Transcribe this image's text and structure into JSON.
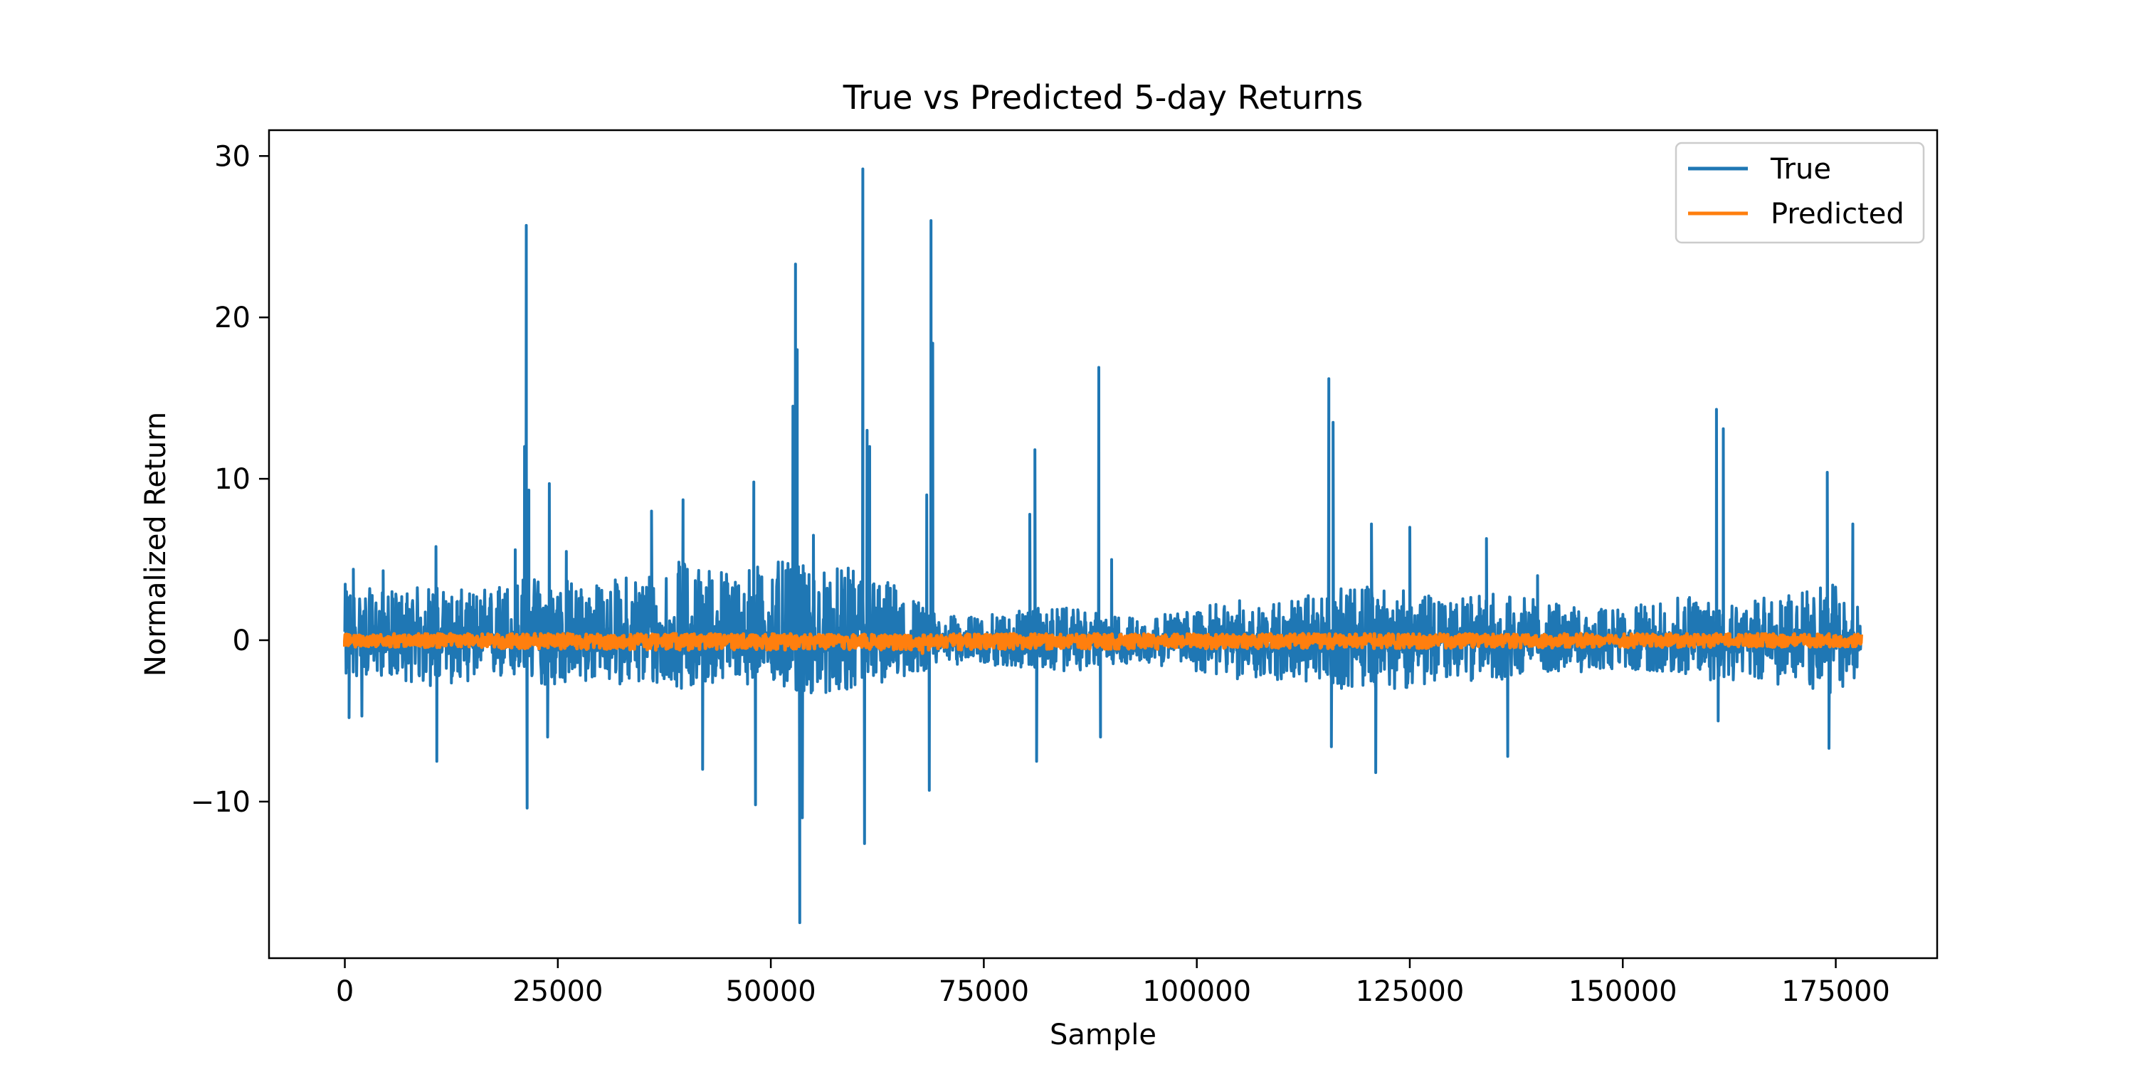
{
  "chart_data": {
    "type": "line",
    "title": "True vs Predicted 5-day Returns",
    "xlabel": "Sample",
    "ylabel": "Normalized Return",
    "xlim": [
      -8900,
      186900
    ],
    "ylim": [
      -19.7,
      31.6
    ],
    "x_ticks": [
      0,
      25000,
      50000,
      75000,
      100000,
      125000,
      150000,
      175000
    ],
    "x_tick_labels": [
      "0",
      "25000",
      "50000",
      "75000",
      "100000",
      "125000",
      "150000",
      "175000"
    ],
    "y_ticks": [
      -10,
      0,
      10,
      20,
      30
    ],
    "y_tick_labels": [
      "−10",
      "0",
      "10",
      "20",
      "30"
    ],
    "grid": false,
    "legend_position": "top-right",
    "n_samples": 178000,
    "series": [
      {
        "name": "True",
        "color": "#1f77b4",
        "baseline_envelope": [
          [
            0,
            -2.5,
            3.5
          ],
          [
            5000,
            -2.2,
            3.0
          ],
          [
            10000,
            -3.0,
            3.5
          ],
          [
            15000,
            -2.5,
            3.0
          ],
          [
            20000,
            -2.5,
            4.0
          ],
          [
            25000,
            -3.0,
            4.0
          ],
          [
            30000,
            -2.5,
            3.5
          ],
          [
            35000,
            -3.0,
            4.5
          ],
          [
            40000,
            -3.0,
            5.0
          ],
          [
            45000,
            -2.5,
            4.5
          ],
          [
            50000,
            -3.0,
            5.0
          ],
          [
            55000,
            -3.5,
            4.5
          ],
          [
            60000,
            -3.0,
            4.5
          ],
          [
            65000,
            -2.5,
            3.5
          ],
          [
            70000,
            -1.5,
            1.5
          ],
          [
            75000,
            -1.5,
            1.5
          ],
          [
            80000,
            -1.8,
            2.0
          ],
          [
            85000,
            -2.0,
            2.0
          ],
          [
            90000,
            -1.5,
            1.5
          ],
          [
            95000,
            -1.5,
            1.5
          ],
          [
            100000,
            -2.0,
            2.0
          ],
          [
            105000,
            -2.5,
            2.5
          ],
          [
            110000,
            -2.5,
            2.5
          ],
          [
            115000,
            -3.0,
            3.0
          ],
          [
            120000,
            -3.0,
            3.5
          ],
          [
            125000,
            -3.0,
            3.0
          ],
          [
            130000,
            -2.5,
            2.5
          ],
          [
            135000,
            -2.5,
            3.0
          ],
          [
            140000,
            -2.0,
            2.5
          ],
          [
            145000,
            -2.0,
            2.0
          ],
          [
            150000,
            -1.8,
            2.0
          ],
          [
            155000,
            -2.0,
            2.5
          ],
          [
            160000,
            -2.5,
            3.0
          ],
          [
            165000,
            -2.5,
            2.5
          ],
          [
            170000,
            -3.0,
            3.0
          ],
          [
            175000,
            -3.5,
            3.5
          ],
          [
            178000,
            -2.0,
            2.0
          ]
        ],
        "spikes": [
          [
            200,
            3.0
          ],
          [
            500,
            -4.8
          ],
          [
            1000,
            4.4
          ],
          [
            2000,
            -4.7
          ],
          [
            4500,
            4.3
          ],
          [
            10700,
            5.8
          ],
          [
            10800,
            -7.5
          ],
          [
            18000,
            3.0
          ],
          [
            20000,
            5.6
          ],
          [
            21100,
            12.0
          ],
          [
            21300,
            25.7
          ],
          [
            21400,
            -10.4
          ],
          [
            21600,
            9.3
          ],
          [
            23800,
            -6.0
          ],
          [
            24000,
            9.7
          ],
          [
            26000,
            5.5
          ],
          [
            36000,
            8.0
          ],
          [
            39700,
            8.7
          ],
          [
            42000,
            -8.0
          ],
          [
            48000,
            9.8
          ],
          [
            48200,
            -10.2
          ],
          [
            52600,
            14.5
          ],
          [
            52900,
            23.3
          ],
          [
            53100,
            18.0
          ],
          [
            53400,
            -17.5
          ],
          [
            53700,
            -11.0
          ],
          [
            55000,
            6.5
          ],
          [
            60800,
            29.2
          ],
          [
            61000,
            -12.6
          ],
          [
            61300,
            13.0
          ],
          [
            61600,
            12.0
          ],
          [
            68300,
            9.0
          ],
          [
            68600,
            -9.3
          ],
          [
            68800,
            26.0
          ],
          [
            69000,
            18.4
          ],
          [
            80400,
            7.8
          ],
          [
            81000,
            11.8
          ],
          [
            81200,
            -7.5
          ],
          [
            88500,
            16.9
          ],
          [
            88700,
            -6.0
          ],
          [
            90000,
            5.0
          ],
          [
            115500,
            16.2
          ],
          [
            115800,
            -6.6
          ],
          [
            116000,
            13.5
          ],
          [
            120500,
            7.2
          ],
          [
            121000,
            -8.2
          ],
          [
            125000,
            7.0
          ],
          [
            134000,
            6.3
          ],
          [
            136500,
            -7.2
          ],
          [
            140000,
            4.0
          ],
          [
            161000,
            14.3
          ],
          [
            161200,
            -5.0
          ],
          [
            161800,
            13.1
          ],
          [
            174000,
            10.4
          ],
          [
            174200,
            -6.7
          ],
          [
            177000,
            7.2
          ]
        ]
      },
      {
        "name": "Predicted",
        "color": "#ff7f0e",
        "baseline_envelope": [
          [
            0,
            -0.4,
            0.4
          ],
          [
            36000,
            -0.6,
            0.4
          ],
          [
            68000,
            -0.6,
            0.4
          ],
          [
            178000,
            -0.4,
            0.4
          ]
        ],
        "spikes": [
          [
            0,
            -0.4
          ],
          [
            36500,
            -0.6
          ],
          [
            67800,
            -0.8
          ],
          [
            68000,
            0.3
          ]
        ]
      }
    ]
  }
}
